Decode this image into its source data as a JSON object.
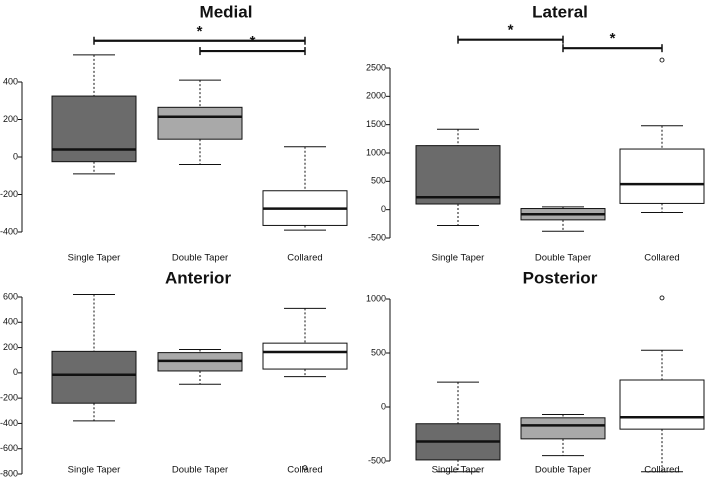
{
  "colors": {
    "dark": "#6b6b6b",
    "light": "#a9a9a9",
    "white": "#ffffff",
    "ink": "#111111"
  },
  "chart_data": [
    {
      "type": "boxplot",
      "title": "Medial",
      "categories": [
        "Single Taper",
        "Double Taper",
        "Collared"
      ],
      "yticks": [
        400,
        200,
        0,
        -200,
        -400
      ],
      "ylim": [
        -400,
        500
      ],
      "boxes": [
        {
          "min": -90,
          "q1": -25,
          "median": 40,
          "q3": 325,
          "max": 545,
          "fill": "dark",
          "outliers": []
        },
        {
          "min": -40,
          "q1": 95,
          "median": 215,
          "q3": 265,
          "max": 410,
          "fill": "light",
          "outliers": []
        },
        {
          "min": -390,
          "q1": -365,
          "median": -275,
          "q3": -180,
          "max": 55,
          "fill": "white",
          "outliers": []
        }
      ],
      "significance": [
        {
          "from": 0,
          "to": 2,
          "label": "*",
          "y": 620
        },
        {
          "from": 1,
          "to": 2,
          "label": "*",
          "y": 565
        }
      ]
    },
    {
      "type": "boxplot",
      "title": "Lateral",
      "categories": [
        "Single Taper",
        "Double Taper",
        "Collared"
      ],
      "yticks": [
        2500,
        2000,
        1500,
        1000,
        500,
        0,
        -500
      ],
      "ylim": [
        -500,
        2600
      ],
      "boxes": [
        {
          "min": -280,
          "q1": 100,
          "median": 220,
          "q3": 1130,
          "max": 1420,
          "fill": "dark",
          "outliers": []
        },
        {
          "min": -380,
          "q1": -180,
          "median": -80,
          "q3": 20,
          "max": 50,
          "fill": "light",
          "outliers": []
        },
        {
          "min": -50,
          "q1": 110,
          "median": 450,
          "q3": 1070,
          "max": 1480,
          "fill": "white",
          "outliers": [
            2640
          ]
        }
      ],
      "significance": [
        {
          "from": 0,
          "to": 1,
          "label": "*",
          "y": 3000
        },
        {
          "from": 1,
          "to": 2,
          "label": "*",
          "y": 2850
        }
      ]
    },
    {
      "type": "boxplot",
      "title": "Anterior",
      "categories": [
        "Single Taper",
        "Double Taper",
        "Collared"
      ],
      "yticks": [
        600,
        400,
        200,
        0,
        -200,
        -400,
        -600,
        -800
      ],
      "ylim": [
        -800,
        640
      ],
      "boxes": [
        {
          "min": -380,
          "q1": -240,
          "median": -15,
          "q3": 170,
          "max": 620,
          "fill": "dark",
          "outliers": []
        },
        {
          "min": -90,
          "q1": 15,
          "median": 95,
          "q3": 160,
          "max": 185,
          "fill": "light",
          "outliers": []
        },
        {
          "min": -30,
          "q1": 30,
          "median": 165,
          "q3": 235,
          "max": 510,
          "fill": "white",
          "outliers": [
            -750
          ]
        }
      ],
      "significance": []
    },
    {
      "type": "boxplot",
      "title": "Posterior",
      "categories": [
        "Single Taper",
        "Double Taper",
        "Collared"
      ],
      "yticks": [
        1000,
        500,
        0,
        -500
      ],
      "ylim": [
        -560,
        1050
      ],
      "boxes": [
        {
          "min": -600,
          "q1": -490,
          "median": -320,
          "q3": -155,
          "max": 230,
          "fill": "dark",
          "outliers": []
        },
        {
          "min": -450,
          "q1": -295,
          "median": -170,
          "q3": -100,
          "max": -70,
          "fill": "light",
          "outliers": []
        },
        {
          "min": -600,
          "q1": -205,
          "median": -95,
          "q3": 250,
          "max": 525,
          "fill": "white",
          "outliers": [
            1010
          ]
        }
      ],
      "significance": []
    }
  ]
}
